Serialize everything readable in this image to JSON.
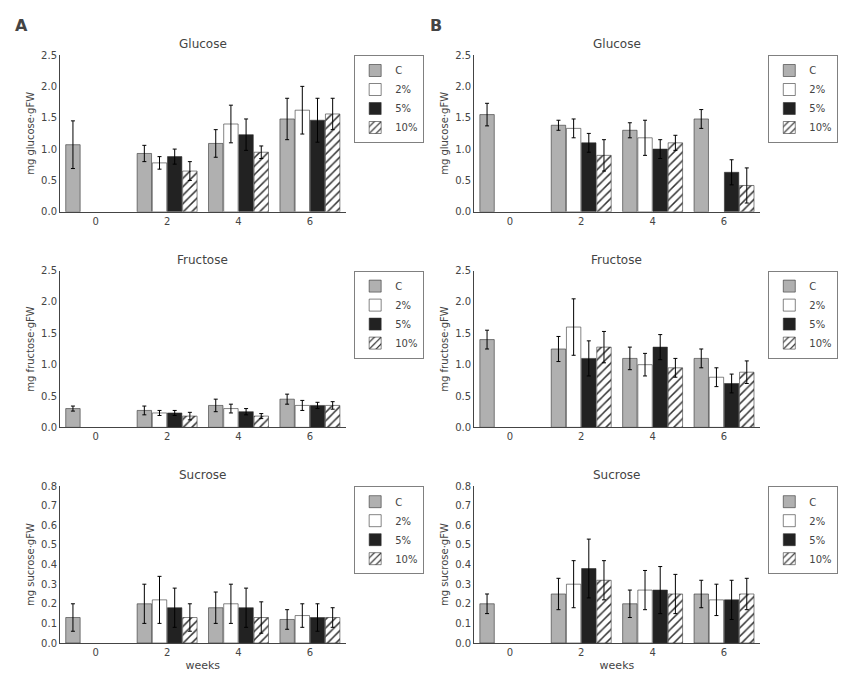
{
  "chart_data": [
    {
      "type": "bar",
      "title": "Glucose",
      "ylabel": "mg glucose·gFW",
      "annotations": [
        "A"
      ],
      "categories": [
        "0",
        "2",
        "4",
        "6"
      ],
      "series": [
        {
          "name": "C",
          "color": "#b0b0b0",
          "values": [
            1.07,
            0.93,
            1.09,
            1.48
          ],
          "errors": [
            0.38,
            0.13,
            0.22,
            0.33
          ]
        },
        {
          "name": "2%",
          "color": "#ffffff",
          "values": [
            null,
            0.78,
            1.4,
            1.62
          ],
          "errors": [
            null,
            0.1,
            0.3,
            0.38
          ]
        },
        {
          "name": "5%",
          "color": "#222222",
          "values": [
            null,
            0.88,
            1.23,
            1.46
          ],
          "errors": [
            null,
            0.12,
            0.25,
            0.35
          ]
        },
        {
          "name": "10%",
          "color": "#ffffff",
          "marker": "hatch",
          "values": [
            null,
            0.65,
            0.95,
            1.56
          ],
          "errors": [
            null,
            0.15,
            0.1,
            0.25
          ]
        }
      ],
      "ylim": [
        0,
        2.5
      ],
      "yticks": [
        {
          "value": 0.0,
          "label": "0.0"
        },
        0.5,
        {
          "value": 1.0,
          "label": "1.0"
        },
        1.5,
        {
          "value": 2.0,
          "label": "2.0"
        },
        2.5
      ],
      "grid": false,
      "legend": "right"
    },
    {
      "type": "bar",
      "title": "Fructose",
      "ylabel": "mg fructose·gFW",
      "categories": [
        "0",
        "2",
        "4",
        "6"
      ],
      "series": [
        {
          "name": "C",
          "color": "#b0b0b0",
          "values": [
            0.3,
            0.27,
            0.35,
            0.45
          ],
          "errors": [
            0.04,
            0.07,
            0.1,
            0.08
          ]
        },
        {
          "name": "2%",
          "color": "#ffffff",
          "values": [
            null,
            0.23,
            0.3,
            0.35
          ],
          "errors": [
            null,
            0.04,
            0.07,
            0.08
          ]
        },
        {
          "name": "5%",
          "color": "#222222",
          "values": [
            null,
            0.23,
            0.25,
            0.35
          ],
          "errors": [
            null,
            0.04,
            0.05,
            0.05
          ]
        },
        {
          "name": "10%",
          "color": "#ffffff",
          "marker": "hatch",
          "values": [
            null,
            0.18,
            0.18,
            0.35
          ],
          "errors": [
            null,
            0.06,
            0.04,
            0.06
          ]
        }
      ],
      "ylim": [
        0,
        2.5
      ],
      "yticks": [
        {
          "value": 0.0,
          "label": "0.0"
        },
        0.5,
        {
          "value": 1.0,
          "label": "1.0"
        },
        1.5,
        {
          "value": 2.0,
          "label": "2.0"
        },
        2.5
      ],
      "grid": false,
      "legend": "right"
    },
    {
      "type": "bar",
      "title": "Sucrose",
      "ylabel": "mg sucrose·gFW",
      "xlabel": "weeks",
      "categories": [
        "0",
        "2",
        "4",
        "6"
      ],
      "series": [
        {
          "name": "C",
          "color": "#b0b0b0",
          "values": [
            0.13,
            0.2,
            0.18,
            0.12
          ],
          "errors": [
            0.07,
            0.1,
            0.08,
            0.05
          ]
        },
        {
          "name": "2%",
          "color": "#ffffff",
          "values": [
            null,
            0.22,
            0.2,
            0.14
          ],
          "errors": [
            null,
            0.12,
            0.1,
            0.06
          ]
        },
        {
          "name": "5%",
          "color": "#222222",
          "values": [
            null,
            0.18,
            0.18,
            0.13
          ],
          "errors": [
            null,
            0.1,
            0.1,
            0.07
          ]
        },
        {
          "name": "10%",
          "color": "#ffffff",
          "marker": "hatch",
          "values": [
            null,
            0.13,
            0.13,
            0.13
          ],
          "errors": [
            null,
            0.07,
            0.08,
            0.05
          ]
        }
      ],
      "ylim": [
        0,
        0.8
      ],
      "yticks": [
        {
          "value": 0.0,
          "label": "0.0"
        },
        0.1,
        0.2,
        0.3,
        0.4,
        0.5,
        0.6,
        0.7,
        0.8
      ],
      "grid": false,
      "legend": "right"
    },
    {
      "type": "bar",
      "title": "Glucose",
      "ylabel": "mg glucose·gFW",
      "annotations": [
        "B"
      ],
      "categories": [
        "0",
        "2",
        "4",
        "6"
      ],
      "series": [
        {
          "name": "C",
          "color": "#b0b0b0",
          "values": [
            1.55,
            1.38,
            1.3,
            1.48
          ],
          "errors": [
            0.18,
            0.08,
            0.12,
            0.15
          ]
        },
        {
          "name": "2%",
          "color": "#ffffff",
          "values": [
            null,
            1.33,
            1.18,
            null
          ],
          "errors": [
            null,
            0.15,
            0.28,
            null
          ]
        },
        {
          "name": "5%",
          "color": "#222222",
          "values": [
            null,
            1.1,
            1.0,
            0.63
          ],
          "errors": [
            null,
            0.15,
            0.15,
            0.2
          ]
        },
        {
          "name": "10%",
          "color": "#ffffff",
          "marker": "hatch",
          "values": [
            null,
            0.9,
            1.1,
            0.42
          ],
          "errors": [
            null,
            0.25,
            0.12,
            0.28
          ]
        }
      ],
      "ylim": [
        0,
        2.5
      ],
      "yticks": [
        {
          "value": 0.0,
          "label": "0.0"
        },
        0.5,
        {
          "value": 1.0,
          "label": "1.0"
        },
        1.5,
        {
          "value": 2.0,
          "label": "2.0"
        },
        2.5
      ],
      "grid": false,
      "legend": "right"
    },
    {
      "type": "bar",
      "title": "Fructose",
      "ylabel": "mg fructose·gFW",
      "categories": [
        "0",
        "2",
        "4",
        "6"
      ],
      "series": [
        {
          "name": "C",
          "color": "#b0b0b0",
          "values": [
            1.4,
            1.25,
            1.1,
            1.1
          ],
          "errors": [
            0.15,
            0.2,
            0.18,
            0.15
          ]
        },
        {
          "name": "2%",
          "color": "#ffffff",
          "values": [
            null,
            1.6,
            1.0,
            0.8
          ],
          "errors": [
            null,
            0.45,
            0.18,
            0.15
          ]
        },
        {
          "name": "5%",
          "color": "#222222",
          "values": [
            null,
            1.1,
            1.28,
            0.7
          ],
          "errors": [
            null,
            0.28,
            0.2,
            0.15
          ]
        },
        {
          "name": "10%",
          "color": "#ffffff",
          "marker": "hatch",
          "values": [
            null,
            1.28,
            0.95,
            0.88
          ],
          "errors": [
            null,
            0.25,
            0.15,
            0.18
          ]
        }
      ],
      "ylim": [
        0,
        2.5
      ],
      "yticks": [
        {
          "value": 0.0,
          "label": "0.0"
        },
        0.5,
        {
          "value": 1.0,
          "label": "1.0"
        },
        1.5,
        {
          "value": 2.0,
          "label": "2.0"
        },
        2.5
      ],
      "grid": false,
      "legend": "right"
    },
    {
      "type": "bar",
      "title": "Sucrose",
      "ylabel": "mg sucrose·gFW",
      "xlabel": "weeks",
      "categories": [
        "0",
        "2",
        "4",
        "6"
      ],
      "series": [
        {
          "name": "C",
          "color": "#b0b0b0",
          "values": [
            0.2,
            0.25,
            0.2,
            0.25
          ],
          "errors": [
            0.05,
            0.08,
            0.07,
            0.07
          ]
        },
        {
          "name": "2%",
          "color": "#ffffff",
          "values": [
            null,
            0.3,
            0.27,
            0.22
          ],
          "errors": [
            null,
            0.12,
            0.1,
            0.08
          ]
        },
        {
          "name": "5%",
          "color": "#222222",
          "values": [
            null,
            0.38,
            0.27,
            0.22
          ],
          "errors": [
            null,
            0.15,
            0.12,
            0.1
          ]
        },
        {
          "name": "10%",
          "color": "#ffffff",
          "marker": "hatch",
          "values": [
            null,
            0.32,
            0.25,
            0.25
          ],
          "errors": [
            null,
            0.1,
            0.1,
            0.08
          ]
        }
      ],
      "ylim": [
        0,
        0.8
      ],
      "yticks": [
        {
          "value": 0.0,
          "label": "0.0"
        },
        0.1,
        0.2,
        0.3,
        0.4,
        0.5,
        0.6,
        0.7,
        0.8
      ],
      "grid": false,
      "legend": "right"
    }
  ]
}
